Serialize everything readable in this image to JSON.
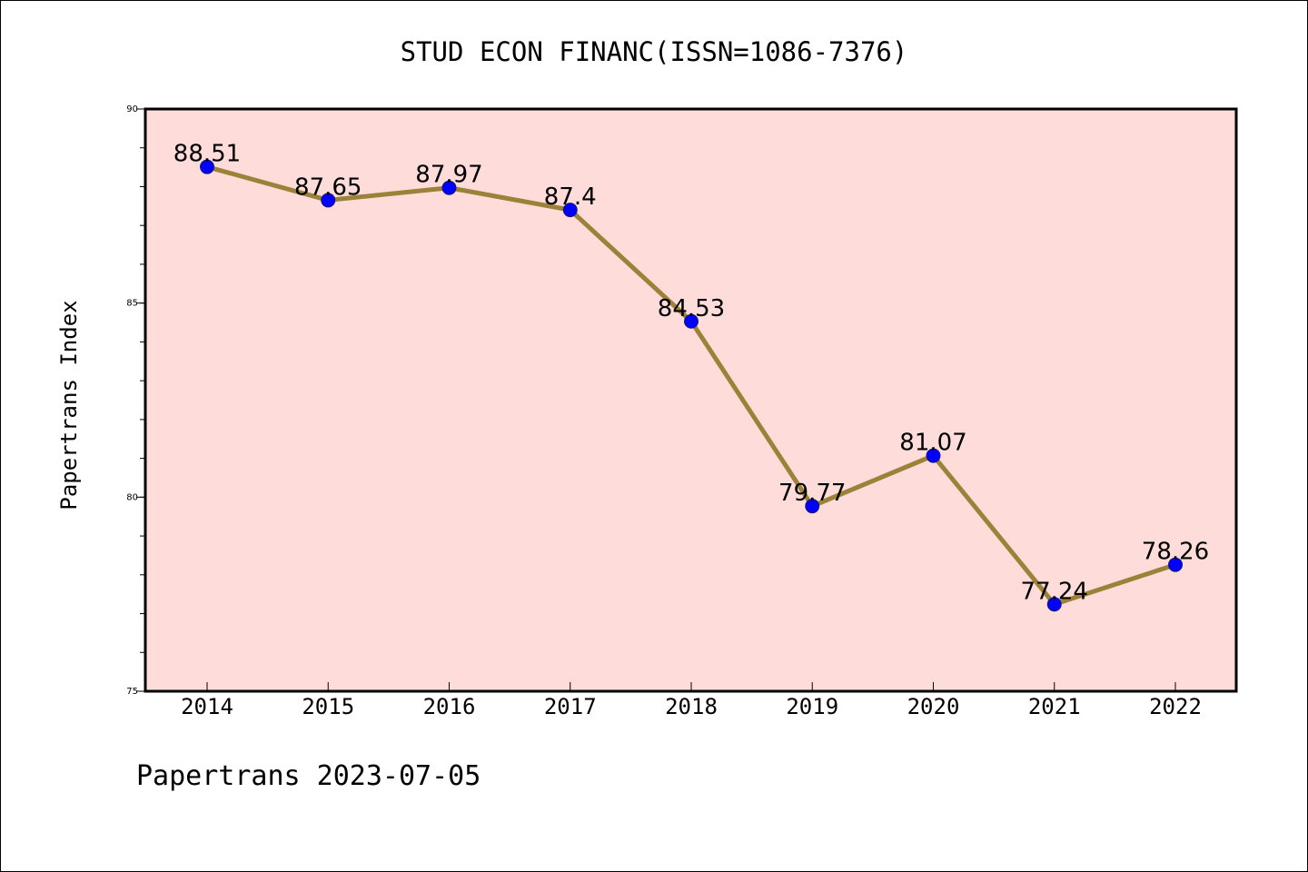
{
  "chart_data": {
    "type": "line",
    "title": "STUD ECON FINANC(ISSN=1086-7376)",
    "ylabel": "Papertrans Index",
    "xlabel": "",
    "footer": "Papertrans 2023-07-05",
    "categories": [
      "2014",
      "2015",
      "2016",
      "2017",
      "2018",
      "2019",
      "2020",
      "2021",
      "2022"
    ],
    "values": [
      88.51,
      87.65,
      87.97,
      87.4,
      84.53,
      79.77,
      81.07,
      77.24,
      78.26
    ],
    "value_labels": [
      "88.51",
      "87.65",
      "87.97",
      "87.4",
      "84.53",
      "79.77",
      "81.07",
      "77.24",
      "78.26"
    ],
    "ylim": [
      75,
      90
    ],
    "yticks": [
      "75",
      "80",
      "85",
      "90"
    ],
    "grid": false,
    "colors": {
      "plot_background": "#fddcd9",
      "line": "#9b8238",
      "marker": "#0000ff",
      "marker_edge": "#1a1a6e"
    }
  }
}
